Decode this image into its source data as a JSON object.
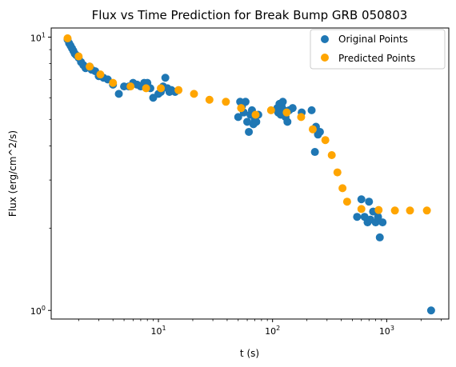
{
  "chart_data": {
    "type": "scatter",
    "title": "Flux vs Time Prediction for Break Bump GRB 050803",
    "xlabel": "t (s)",
    "ylabel": "Flux (erg/cm^2/s)",
    "xscale": "log",
    "yscale": "log",
    "xlim": [
      1.15,
      3500
    ],
    "ylim": [
      0.93,
      10.8
    ],
    "x_ticks": [
      {
        "value": 10,
        "base": "10",
        "exp": "1"
      },
      {
        "value": 100,
        "base": "10",
        "exp": "2"
      },
      {
        "value": 1000,
        "base": "10",
        "exp": "3"
      }
    ],
    "y_ticks": [
      {
        "value": 1,
        "base": "10",
        "exp": "0"
      },
      {
        "value": 10,
        "base": "10",
        "exp": "1"
      }
    ],
    "grid": false,
    "legend": {
      "position": "top-right"
    },
    "series": [
      {
        "name": "Original Points",
        "color": "#1f77b4",
        "points": [
          [
            1.6,
            9.8
          ],
          [
            1.65,
            9.5
          ],
          [
            1.7,
            9.3
          ],
          [
            1.75,
            9.1
          ],
          [
            1.8,
            8.9
          ],
          [
            1.85,
            8.7
          ],
          [
            1.9,
            8.6
          ],
          [
            2.0,
            8.4
          ],
          [
            2.1,
            8.1
          ],
          [
            2.2,
            7.9
          ],
          [
            2.3,
            7.7
          ],
          [
            2.5,
            7.8
          ],
          [
            2.6,
            7.6
          ],
          [
            2.8,
            7.5
          ],
          [
            3.0,
            7.2
          ],
          [
            3.3,
            7.1
          ],
          [
            3.6,
            7.0
          ],
          [
            4.0,
            6.7
          ],
          [
            4.5,
            6.2
          ],
          [
            5.0,
            6.6
          ],
          [
            5.5,
            6.6
          ],
          [
            6.0,
            6.8
          ],
          [
            6.5,
            6.7
          ],
          [
            7.0,
            6.6
          ],
          [
            7.5,
            6.8
          ],
          [
            8.0,
            6.8
          ],
          [
            8.5,
            6.5
          ],
          [
            9.0,
            6.0
          ],
          [
            10.0,
            6.2
          ],
          [
            10.5,
            6.3
          ],
          [
            11.0,
            6.6
          ],
          [
            11.5,
            7.1
          ],
          [
            12.0,
            6.5
          ],
          [
            12.5,
            6.3
          ],
          [
            13.0,
            6.4
          ],
          [
            14.0,
            6.3
          ],
          [
            50.0,
            5.1
          ],
          [
            52.0,
            5.8
          ],
          [
            54.0,
            5.6
          ],
          [
            56.0,
            5.3
          ],
          [
            58.0,
            5.8
          ],
          [
            60.0,
            4.9
          ],
          [
            62.0,
            4.5
          ],
          [
            64.0,
            5.2
          ],
          [
            66.0,
            5.4
          ],
          [
            68.0,
            4.8
          ],
          [
            70.0,
            5.0
          ],
          [
            72.0,
            4.9
          ],
          [
            75.0,
            5.2
          ],
          [
            110.0,
            5.5
          ],
          [
            112.0,
            5.3
          ],
          [
            115.0,
            5.7
          ],
          [
            118.0,
            5.2
          ],
          [
            120.0,
            5.6
          ],
          [
            123.0,
            5.8
          ],
          [
            126.0,
            5.4
          ],
          [
            130.0,
            5.1
          ],
          [
            135.0,
            4.9
          ],
          [
            140.0,
            5.4
          ],
          [
            150.0,
            5.5
          ],
          [
            180.0,
            5.3
          ],
          [
            220.0,
            5.4
          ],
          [
            235.0,
            3.8
          ],
          [
            240.0,
            4.7
          ],
          [
            250.0,
            4.4
          ],
          [
            260.0,
            4.5
          ],
          [
            550.0,
            2.2
          ],
          [
            600.0,
            2.55
          ],
          [
            640.0,
            2.2
          ],
          [
            680.0,
            2.1
          ],
          [
            700.0,
            2.5
          ],
          [
            720.0,
            2.15
          ],
          [
            760.0,
            2.3
          ],
          [
            800.0,
            2.1
          ],
          [
            840.0,
            2.2
          ],
          [
            870.0,
            1.85
          ],
          [
            920.0,
            2.1
          ],
          [
            2450.0,
            1.0
          ]
        ]
      },
      {
        "name": "Predicted Points",
        "color": "#ffa500",
        "points": [
          [
            1.6,
            9.9
          ],
          [
            2.0,
            8.5
          ],
          [
            2.5,
            7.8
          ],
          [
            3.1,
            7.3
          ],
          [
            4.0,
            6.8
          ],
          [
            5.7,
            6.6
          ],
          [
            7.8,
            6.5
          ],
          [
            10.5,
            6.5
          ],
          [
            15.0,
            6.4
          ],
          [
            20.5,
            6.2
          ],
          [
            28.0,
            5.9
          ],
          [
            39.0,
            5.8
          ],
          [
            53.0,
            5.5
          ],
          [
            71.0,
            5.2
          ],
          [
            97.0,
            5.4
          ],
          [
            133.0,
            5.3
          ],
          [
            178.0,
            5.1
          ],
          [
            225.0,
            4.6
          ],
          [
            290.0,
            4.2
          ],
          [
            330.0,
            3.7
          ],
          [
            370.0,
            3.2
          ],
          [
            410.0,
            2.8
          ],
          [
            450.0,
            2.5
          ],
          [
            600.0,
            2.35
          ],
          [
            850.0,
            2.33
          ],
          [
            1180.0,
            2.32
          ],
          [
            1600.0,
            2.32
          ],
          [
            2250.0,
            2.32
          ]
        ]
      }
    ]
  }
}
